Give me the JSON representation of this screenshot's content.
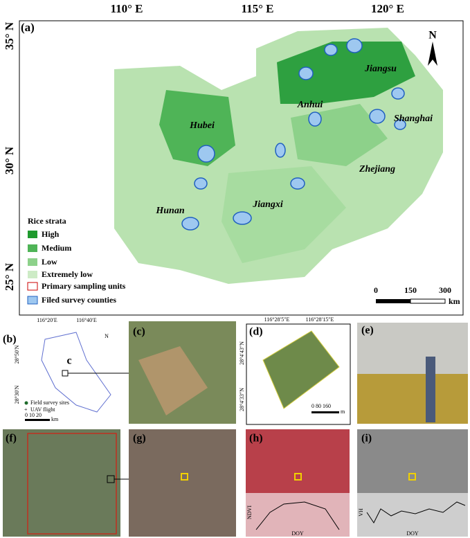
{
  "panels": {
    "a": {
      "label": "(a)",
      "lon_labels": [
        "110° E",
        "115° E",
        "120° E"
      ],
      "lat_labels": [
        "35° N",
        "30° N",
        "25° N"
      ],
      "north": "N",
      "provinces": [
        "Hubei",
        "Anhui",
        "Jiangsu",
        "Shanghai",
        "Zhejiang",
        "Jiangxi",
        "Hunan"
      ],
      "legend": {
        "title": "Rice strata",
        "items": [
          "High",
          "Medium",
          "Low",
          "Extremely low",
          "Primary sampling units",
          "Filed survey counties"
        ]
      },
      "scale": {
        "ticks": [
          "0",
          "150",
          "300"
        ],
        "unit": "km"
      }
    },
    "b": {
      "label": "(b)",
      "lon_labels": [
        "116°20′E",
        "116°40′E"
      ],
      "lat_labels": [
        "28°50′N",
        "28°30′N"
      ],
      "north": "N",
      "inset": "c",
      "legend": [
        "Field survey sites",
        "UAV flight"
      ],
      "scale": {
        "ticks": "0   10   20",
        "unit": "km"
      }
    },
    "c": {
      "label": "(c)"
    },
    "d": {
      "label": "(d)",
      "lon_labels": [
        "116°28′5″E",
        "116°28′15″E"
      ],
      "lat_labels": [
        "28°4′43″N",
        "28°4′33″N"
      ],
      "scale": {
        "ticks": "0    80   160",
        "unit": "m"
      }
    },
    "e": {
      "label": "(e)"
    },
    "f": {
      "label": "(f)"
    },
    "g": {
      "label": "(g)"
    },
    "h": {
      "label": "(h)",
      "y_label": "NDVI",
      "x_label": "DOY"
    },
    "i": {
      "label": "(i)",
      "y_label": "VH",
      "x_label": "DOY"
    }
  }
}
